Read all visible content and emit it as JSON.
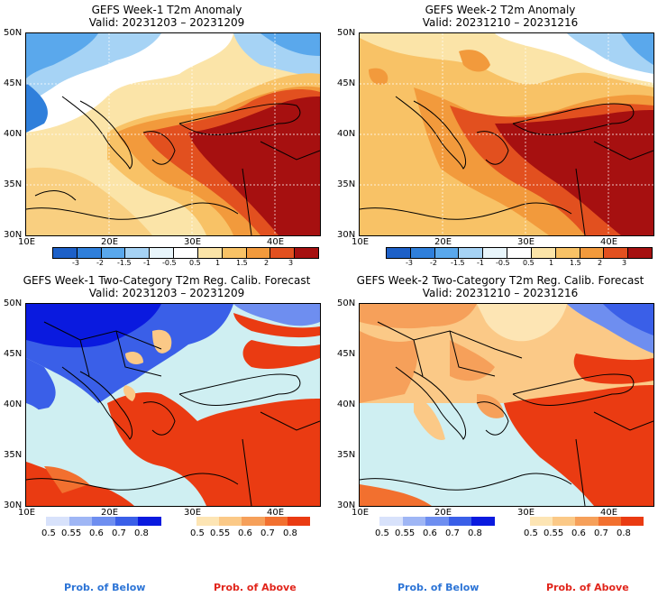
{
  "panels": [
    {
      "title": "GEFS Week-1 T2m Anomaly",
      "valid": "Valid: 20231203 – 20231209"
    },
    {
      "title": "GEFS Week-2 T2m Anomaly",
      "valid": "Valid: 20231210 – 20231216"
    },
    {
      "title": "GEFS Week-1 Two-Category T2m Reg. Calib. Forecast",
      "valid": "Valid: 20231203 – 20231209"
    },
    {
      "title": "GEFS Week-2 Two-Category T2m Reg. Calib. Forecast",
      "valid": "Valid: 20231210 – 20231216"
    }
  ],
  "lat_labels": [
    "50N",
    "45N",
    "40N",
    "35N",
    "30N"
  ],
  "lon_labels": [
    "10E",
    "20E",
    "30E",
    "40E"
  ],
  "anomaly_scale": {
    "ticks": [
      "-3",
      "-2",
      "-1.5",
      "-1",
      "-0.5",
      "0.5",
      "1",
      "1.5",
      "2",
      "3"
    ],
    "colors": [
      "#1d60c8",
      "#2f7fdb",
      "#5aa8ec",
      "#a6d3f5",
      "#e8f5fb",
      "#ffffff",
      "#fbe4a8",
      "#f8c266",
      "#f29a3c",
      "#e2501f",
      "#a61010"
    ]
  },
  "prob_below": {
    "ticks": [
      "0.5",
      "0.55",
      "0.6",
      "0.7",
      "0.8"
    ],
    "colors": [
      "#d8e2fb",
      "#9fb6f5",
      "#6e8ef0",
      "#3a5fe8",
      "#0a1adf"
    ]
  },
  "prob_above": {
    "ticks": [
      "0.5",
      "0.55",
      "0.6",
      "0.7",
      "0.8"
    ],
    "colors": [
      "#fde5b4",
      "#fbc987",
      "#f6a05a",
      "#f2702f",
      "#ea3b12"
    ]
  },
  "footer": {
    "below_label": "Prob. of Below",
    "above_label": "Prob. of Above",
    "below_color": "#2c74d6",
    "above_color": "#e1251b"
  }
}
